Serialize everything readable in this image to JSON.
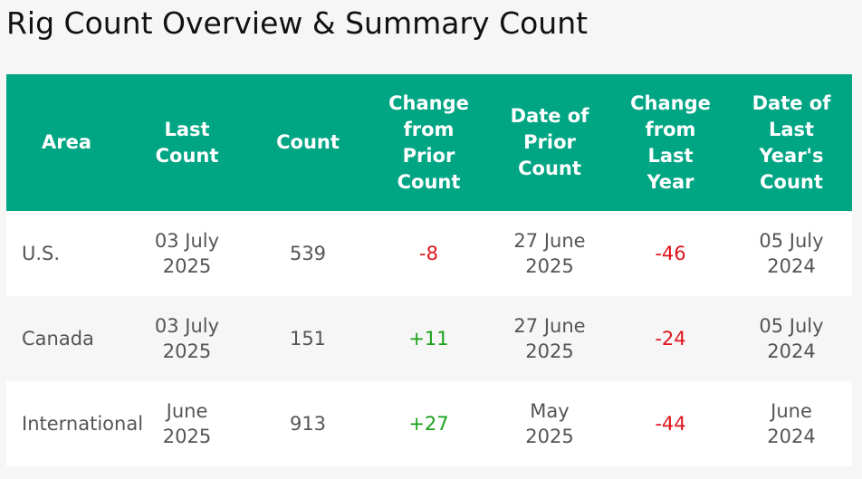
{
  "page": {
    "title": "Rig Count Overview & Summary Count"
  },
  "table": {
    "headers": [
      [
        "Area"
      ],
      [
        "Last",
        "Count"
      ],
      [
        "Count"
      ],
      [
        "Change",
        "from",
        "Prior",
        "Count"
      ],
      [
        "Date of",
        "Prior",
        "Count"
      ],
      [
        "Change",
        "from",
        "Last",
        "Year"
      ],
      [
        "Date of",
        "Last",
        "Year's",
        "Count"
      ]
    ],
    "rows": [
      {
        "area": "U.S.",
        "last_count": [
          "03 July",
          "2025"
        ],
        "count": "539",
        "change_prior": "-8",
        "date_prior": [
          "27 June",
          "2025"
        ],
        "change_year": "-46",
        "date_last_year": [
          "05 July",
          "2024"
        ]
      },
      {
        "area": "Canada",
        "last_count": [
          "03 July",
          "2025"
        ],
        "count": "151",
        "change_prior": "+11",
        "date_prior": [
          "27 June",
          "2025"
        ],
        "change_year": "-24",
        "date_last_year": [
          "05 July",
          "2024"
        ]
      },
      {
        "area": "International",
        "last_count": [
          "June",
          "2025"
        ],
        "count": "913",
        "change_prior": "+27",
        "date_prior": [
          "May",
          "2025"
        ],
        "change_year": "-44",
        "date_last_year": [
          "June",
          "2024"
        ]
      }
    ]
  },
  "colors": {
    "header_bg": "#00a584",
    "negative": "#e0131b",
    "positive": "#19a01a"
  }
}
